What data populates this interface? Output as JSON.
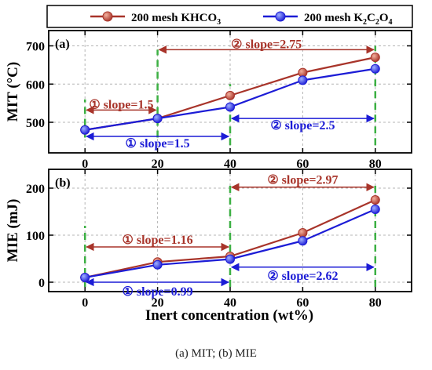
{
  "legend": [
    {
      "name": "200 mesh KHCO",
      "sub": "3",
      "color": "#a8342a"
    },
    {
      "name": "200 mesh K",
      "sub": [
        "2",
        "C",
        "2",
        "O",
        "4"
      ],
      "color": "#1c1cd6"
    }
  ],
  "xlabel": "Inert concentration (wt%)",
  "caption": "(a) MIT; (b) MIE",
  "colors": {
    "red": "#a8342a",
    "blue": "#1c1cd6",
    "green": "#3cb043",
    "grid": "#b4b4b4"
  },
  "chart_data": [
    {
      "type": "line",
      "panel_label": "(a)",
      "ylabel": "MIT (°C)",
      "x": [
        0,
        20,
        40,
        60,
        80
      ],
      "xlim": [
        -10,
        90
      ],
      "ylim": [
        420,
        740
      ],
      "yticks": [
        500,
        600,
        700
      ],
      "xticks": [
        0,
        20,
        40,
        60,
        80
      ],
      "series": [
        {
          "name": "200 mesh KHCO3",
          "color": "#a8342a",
          "values": [
            480,
            510,
            570,
            630,
            670
          ]
        },
        {
          "name": "200 mesh K2C2O4",
          "color": "#1c1cd6",
          "values": [
            480,
            510,
            540,
            610,
            640
          ]
        }
      ],
      "annotations": [
        {
          "text": "① slope=1.5",
          "x1": 0,
          "x2": 20,
          "y": 532,
          "label_y": 548,
          "color": "#a8342a"
        },
        {
          "text": "② slope=2.75",
          "x1": 20,
          "x2": 80,
          "y": 690,
          "label_y": 706,
          "color": "#a8342a"
        },
        {
          "text": "① slope=1.5",
          "x1": 0,
          "x2": 40,
          "y": 463,
          "label_y": 447,
          "color": "#1c1cd6"
        },
        {
          "text": "② slope=2.5",
          "x1": 40,
          "x2": 80,
          "y": 510,
          "label_y": 494,
          "color": "#1c1cd6"
        }
      ],
      "dividers": [
        {
          "x": 0,
          "y_from": 460,
          "y_to": 560
        },
        {
          "x": 20,
          "y_from": 460,
          "y_to": 690
        },
        {
          "x": 40,
          "y_from": 440,
          "y_to": 600
        },
        {
          "x": 80,
          "y_from": 440,
          "y_to": 700
        }
      ]
    },
    {
      "type": "line",
      "panel_label": "(b)",
      "ylabel": "MIE (mJ)",
      "x": [
        0,
        20,
        40,
        60,
        80
      ],
      "xlim": [
        -10,
        90
      ],
      "ylim": [
        -20,
        240
      ],
      "yticks": [
        0,
        100,
        200
      ],
      "xticks": [
        0,
        20,
        40,
        60,
        80
      ],
      "series": [
        {
          "name": "200 mesh KHCO3",
          "color": "#a8342a",
          "values": [
            10,
            43,
            55,
            105,
            175
          ]
        },
        {
          "name": "200 mesh K2C2O4",
          "color": "#1c1cd6",
          "values": [
            10,
            37,
            49,
            88,
            155
          ]
        }
      ],
      "annotations": [
        {
          "text": "① slope=1.16",
          "x1": 0,
          "x2": 40,
          "y": 75,
          "label_y": 92,
          "color": "#a8342a"
        },
        {
          "text": "② slope=2.97",
          "x1": 40,
          "x2": 80,
          "y": 202,
          "label_y": 219,
          "color": "#a8342a"
        },
        {
          "text": "① slope=0.99",
          "x1": 0,
          "x2": 40,
          "y": 0,
          "label_y": -18,
          "color": "#1c1cd6"
        },
        {
          "text": "② slope=2.62",
          "x1": 40,
          "x2": 80,
          "y": 32,
          "label_y": 15,
          "color": "#1c1cd6"
        }
      ],
      "dividers": [
        {
          "x": 0,
          "y_from": -10,
          "y_to": 120
        },
        {
          "x": 40,
          "y_from": -10,
          "y_to": 210
        },
        {
          "x": 80,
          "y_from": -10,
          "y_to": 215
        }
      ]
    }
  ]
}
